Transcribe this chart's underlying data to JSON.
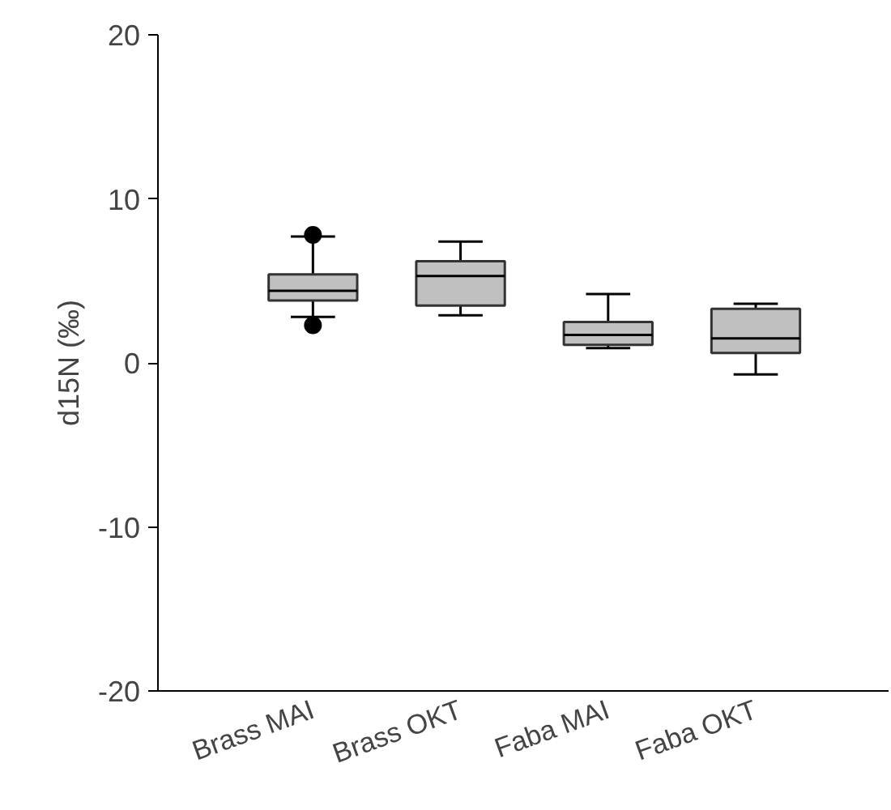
{
  "chart_data": {
    "type": "box",
    "ylabel": "d15N (‰)",
    "categories": [
      "Brass MAI",
      "Brass OKT",
      "Faba MAI",
      "Faba OKT"
    ],
    "ylim": [
      -20,
      20
    ],
    "yticks": [
      -20,
      -10,
      0,
      10,
      20
    ],
    "grid": false,
    "color": "#c0c0c0",
    "boxes": [
      {
        "low": 2.8,
        "q1": 3.8,
        "median": 4.4,
        "q3": 5.4,
        "high": 7.7,
        "outliers": [
          7.8,
          2.3
        ]
      },
      {
        "low": 2.9,
        "q1": 3.5,
        "median": 5.3,
        "q3": 6.2,
        "high": 7.4
      },
      {
        "low": 0.9,
        "q1": 1.1,
        "median": 1.7,
        "q3": 2.5,
        "high": 4.2
      },
      {
        "low": -0.7,
        "q1": 0.6,
        "median": 1.5,
        "q3": 3.3,
        "high": 3.6
      }
    ]
  }
}
